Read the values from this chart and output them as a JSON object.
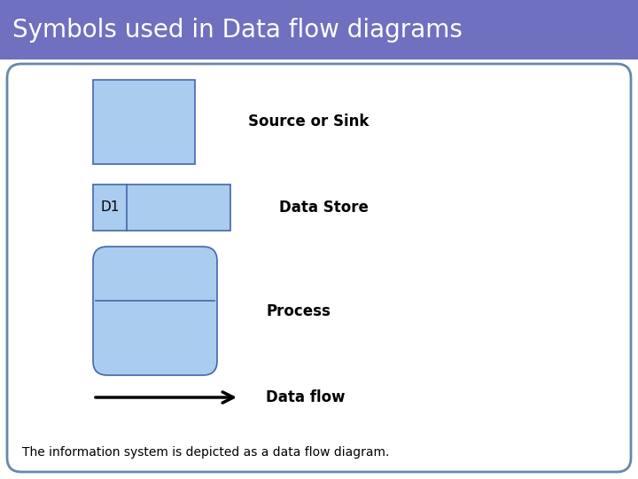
{
  "title": "Symbols used in Data flow diagrams",
  "title_bg_color": "#7070c0",
  "title_text_color": "#ffffff",
  "title_fontsize": 20,
  "body_bg_color": "#ffffff",
  "body_border_color": "#6688aa",
  "shape_fill_color": "#aaccee",
  "shape_edge_color": "#4466aa",
  "label_source_sink": "Source or Sink",
  "label_data_store": "Data Store",
  "label_process": "Process",
  "label_data_flow": "Data flow",
  "label_d1": "D1",
  "footnote": "The information system is depicted as a data flow diagram.",
  "label_fontsize": 12,
  "footnote_fontsize": 10,
  "fig_w": 7.2,
  "fig_h": 5.4,
  "dpi": 100
}
